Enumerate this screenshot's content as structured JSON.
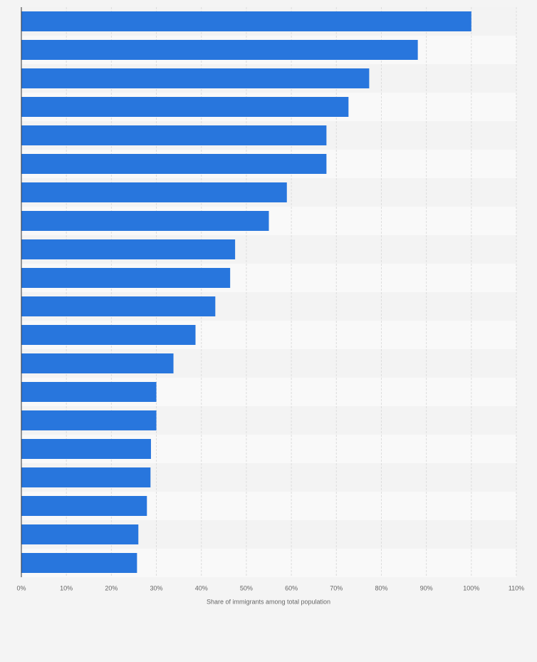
{
  "chart_data": {
    "type": "barh",
    "xlabel": "Share of immigrants among total population",
    "categories": [
      null,
      null,
      null,
      null,
      null,
      null,
      null,
      null,
      null,
      null,
      null,
      null,
      null,
      null,
      null,
      null,
      null,
      null,
      null,
      null
    ],
    "values": [
      100,
      88.1,
      77.3,
      72.7,
      67.8,
      67.8,
      59.0,
      55.0,
      47.5,
      46.4,
      43.1,
      38.7,
      33.8,
      30.0,
      30.0,
      28.8,
      28.7,
      27.9,
      26.0,
      25.7
    ],
    "color": "#2876dd",
    "xlim": [
      0,
      110
    ],
    "xticks": [
      {
        "value": 0,
        "label": "0%"
      },
      {
        "value": 10,
        "label": "10%"
      },
      {
        "value": 20,
        "label": "20%"
      },
      {
        "value": 30,
        "label": "30%"
      },
      {
        "value": 40,
        "label": "40%"
      },
      {
        "value": 50,
        "label": "50%"
      },
      {
        "value": 60,
        "label": "60%"
      },
      {
        "value": 70,
        "label": "70%"
      },
      {
        "value": 80,
        "label": "80%"
      },
      {
        "value": 90,
        "label": "90%"
      },
      {
        "value": 100,
        "label": "100%"
      },
      {
        "value": 110,
        "label": "110%"
      }
    ],
    "grid": true
  }
}
